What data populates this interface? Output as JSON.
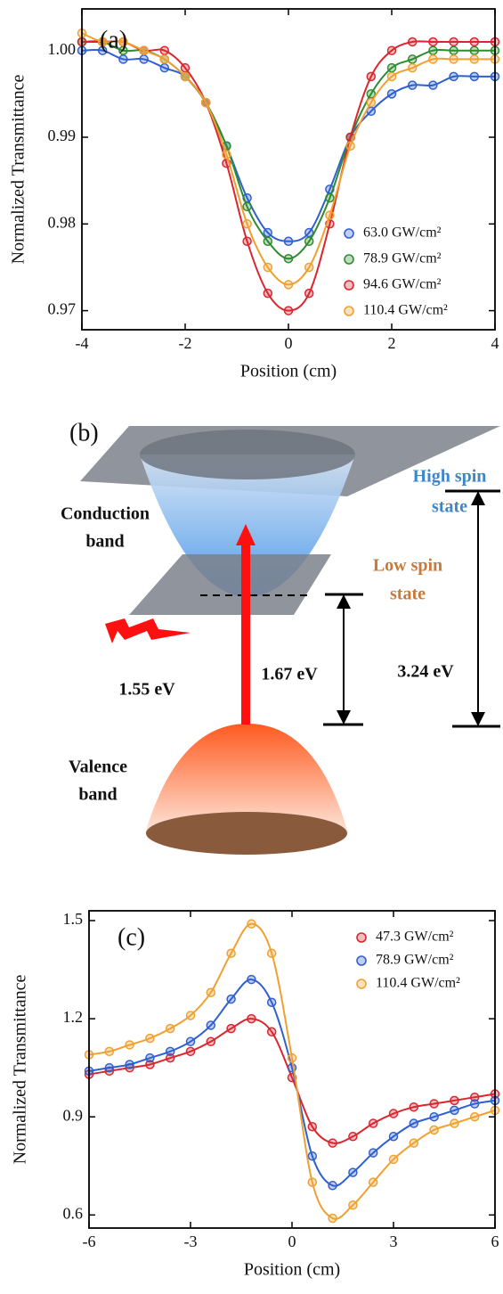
{
  "chart_data": [
    {
      "type": "line",
      "markers": true,
      "panel_label": "(a)",
      "x_label": "Position (cm)",
      "y_label": "Normalized Transmittance",
      "x": [
        -4,
        -3.6,
        -3.2,
        -2.8,
        -2.4,
        -2,
        -1.6,
        -1.2,
        -0.8,
        -0.4,
        0,
        0.4,
        0.8,
        1.2,
        1.6,
        2,
        2.4,
        2.8,
        3.2,
        3.6,
        4
      ],
      "xlim": [
        -4,
        4
      ],
      "xticks": [
        -4,
        -2,
        0,
        2,
        4
      ],
      "ylim": [
        0.9678,
        1.0048
      ],
      "yticks": [
        0.97,
        0.98,
        0.99,
        {
          "value": 1,
          "label": "1.00"
        }
      ],
      "series": [
        {
          "name": "63.0 GW/cm²",
          "color": "#2f5fd0",
          "values": [
            1.0,
            1.0,
            0.999,
            0.999,
            0.998,
            0.997,
            0.994,
            0.989,
            0.983,
            0.979,
            0.978,
            0.979,
            0.984,
            0.99,
            0.993,
            0.995,
            0.996,
            0.996,
            0.997,
            0.997,
            0.997
          ]
        },
        {
          "name": "78.9 GW/cm²",
          "color": "#2e8b2e",
          "values": [
            1.001,
            1.001,
            1.0,
            1.0,
            0.999,
            0.997,
            0.994,
            0.989,
            0.982,
            0.978,
            0.976,
            0.978,
            0.983,
            0.99,
            0.995,
            0.998,
            0.999,
            1.0,
            1.0,
            1.0,
            1.0
          ]
        },
        {
          "name": "94.6 GW/cm²",
          "color": "#d9262f",
          "values": [
            1.001,
            1.001,
            1.001,
            1.0,
            1.0,
            0.998,
            0.994,
            0.987,
            0.978,
            0.972,
            0.97,
            0.972,
            0.98,
            0.99,
            0.997,
            1.0,
            1.001,
            1.001,
            1.001,
            1.001,
            1.001
          ]
        },
        {
          "name": "110.4 GW/cm²",
          "color": "#f0a030",
          "values": [
            1.002,
            1.001,
            1.001,
            1.0,
            0.999,
            0.997,
            0.994,
            0.988,
            0.98,
            0.975,
            0.973,
            0.975,
            0.981,
            0.989,
            0.994,
            0.997,
            0.998,
            0.999,
            0.999,
            0.999,
            0.999
          ]
        }
      ]
    },
    {
      "type": "line",
      "markers": true,
      "panel_label": "(c)",
      "x_label": "Position (cm)",
      "y_label": "Normalized Transmittance",
      "x": [
        -6,
        -5.4,
        -4.8,
        -4.2,
        -3.6,
        -3,
        -2.4,
        -1.8,
        -1.2,
        -0.6,
        0,
        0.6,
        1.2,
        1.8,
        2.4,
        3,
        3.6,
        4.2,
        4.8,
        5.4,
        6
      ],
      "xlim": [
        -6,
        6
      ],
      "xticks": [
        -6,
        -3,
        0,
        3,
        6
      ],
      "ylim": [
        0.56,
        1.53
      ],
      "yticks": [
        0.6,
        0.9,
        1.2,
        1.5
      ],
      "series": [
        {
          "name": "47.3 GW/cm²",
          "color": "#d9262f",
          "values": [
            1.03,
            1.04,
            1.05,
            1.06,
            1.08,
            1.1,
            1.13,
            1.17,
            1.2,
            1.16,
            1.02,
            0.87,
            0.82,
            0.84,
            0.88,
            0.91,
            0.93,
            0.94,
            0.95,
            0.96,
            0.97
          ]
        },
        {
          "name": "78.9 GW/cm²",
          "color": "#2f5fd0",
          "values": [
            1.04,
            1.05,
            1.06,
            1.08,
            1.1,
            1.13,
            1.18,
            1.26,
            1.32,
            1.25,
            1.05,
            0.78,
            0.69,
            0.73,
            0.79,
            0.84,
            0.88,
            0.9,
            0.92,
            0.94,
            0.95
          ]
        },
        {
          "name": "110.4 GW/cm²",
          "color": "#f0a030",
          "values": [
            1.09,
            1.1,
            1.12,
            1.14,
            1.17,
            1.21,
            1.28,
            1.4,
            1.49,
            1.4,
            1.08,
            0.7,
            0.59,
            0.63,
            0.7,
            0.77,
            0.82,
            0.86,
            0.88,
            0.9,
            0.92
          ]
        }
      ]
    }
  ],
  "diagram": {
    "panel_label": "(b)",
    "conduction_band": [
      "Conduction",
      "band"
    ],
    "valence_band": [
      "Valence",
      "band"
    ],
    "high_spin": [
      "High spin",
      "state"
    ],
    "low_spin": [
      "Low spin",
      "state"
    ],
    "photon_energy": "1.55 eV",
    "low_gap": "1.67 eV",
    "high_gap": "3.24 eV"
  }
}
